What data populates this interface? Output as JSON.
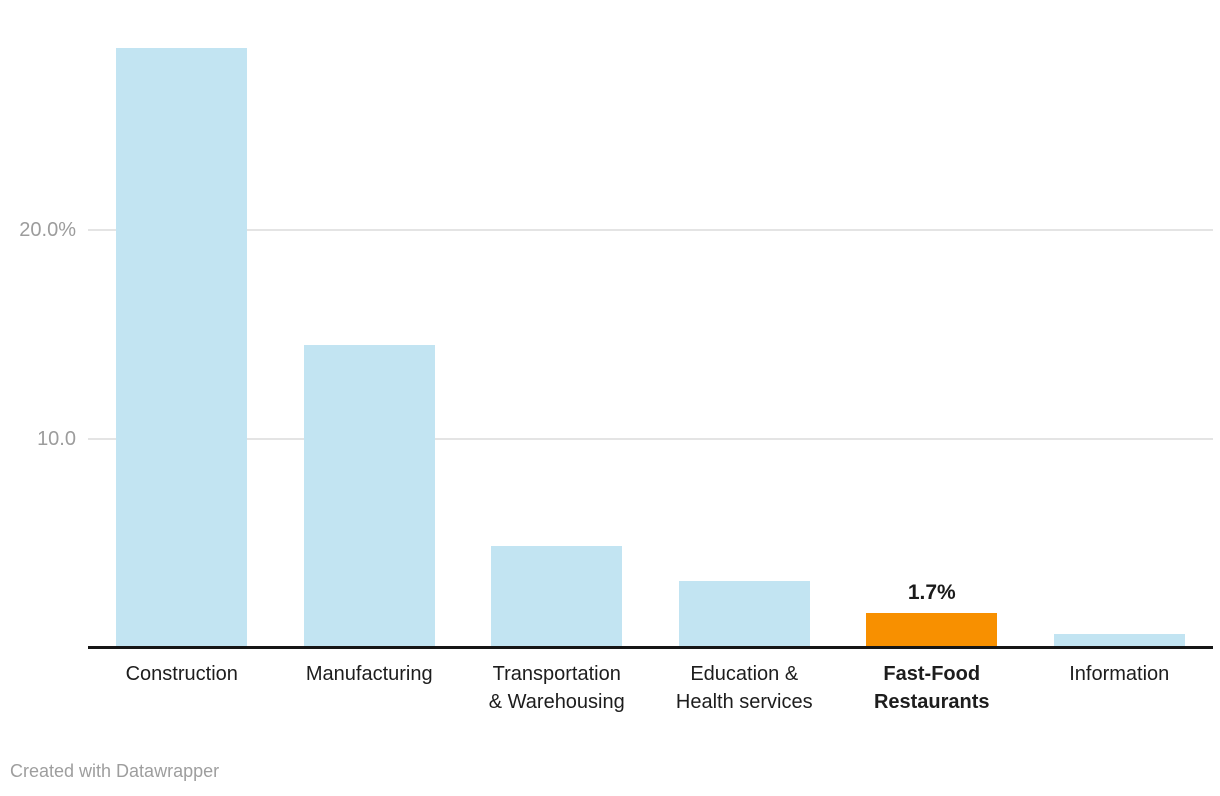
{
  "chart_data": {
    "type": "bar",
    "title": "",
    "xlabel": "",
    "ylabel": "",
    "categories": [
      "Construction",
      "Manufacturing",
      "Transportation & Warehousing",
      "Education & Health services",
      "Fast-Food Restaurants",
      "Information"
    ],
    "category_lines": [
      [
        "Construction"
      ],
      [
        "Manufacturing"
      ],
      [
        "Transportation",
        "& Warehousing"
      ],
      [
        "Education &",
        "Health services"
      ],
      [
        "Fast-Food",
        "Restaurants"
      ],
      [
        "Information"
      ]
    ],
    "values": [
      28.7,
      14.5,
      4.9,
      3.2,
      1.7,
      0.65
    ],
    "value_labels": [
      "",
      "",
      "",
      "",
      "1.7%",
      ""
    ],
    "emphasized_index": 4,
    "ylim": [
      0,
      29
    ],
    "y_ticks": [
      {
        "value": 20,
        "label": "20.0%"
      },
      {
        "value": 10,
        "label": "10.0"
      }
    ],
    "grid": "horizontal",
    "legend": "none"
  },
  "colors": {
    "bar": "#c2e4f2",
    "emphasis": "#f89000",
    "gridline": "#e4e4e4",
    "baseline": "#161616",
    "tick_label": "#9c9c9c",
    "x_label": "#1d1d1d",
    "value_label": "#1a1a1a",
    "attribution": "#9e9e9e"
  },
  "footer": {
    "attribution": "Created with Datawrapper"
  }
}
